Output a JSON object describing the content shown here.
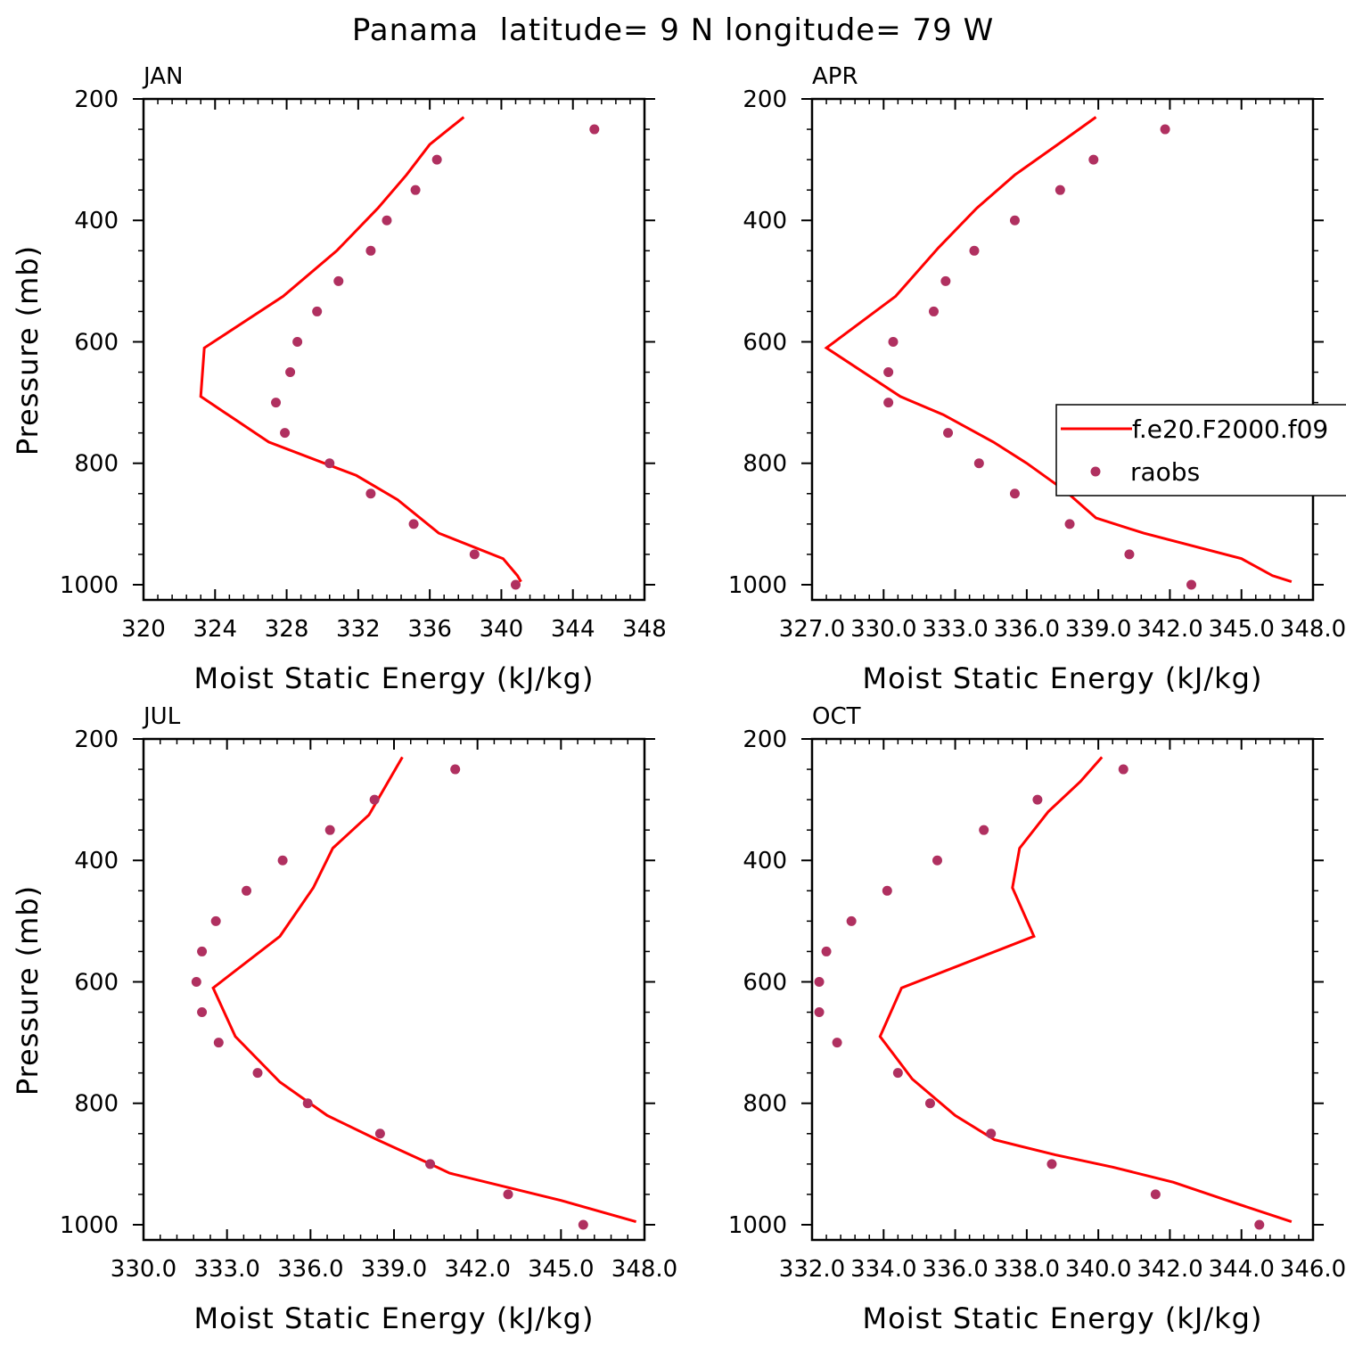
{
  "figure": {
    "title": "Panama  latitude= 9 N longitude= 79 W",
    "colors": {
      "model": "#ff0000",
      "obs": "#b03060",
      "axes": "#000000",
      "background": "#ffffff"
    }
  },
  "legend": {
    "panel": "APR",
    "entries": [
      {
        "label": "f.e20.F2000.f09",
        "style": "line"
      },
      {
        "label": "raobs",
        "style": "marker"
      }
    ]
  },
  "chart_data": [
    {
      "panel": "JAN",
      "type": "line",
      "title": "JAN",
      "xlabel": "Moist Static Energy (kJ/kg)",
      "ylabel": "Pressure (mb)",
      "xlim": [
        320,
        348
      ],
      "xticks": [
        320,
        324,
        328,
        332,
        336,
        340,
        344,
        348
      ],
      "xtick_labels": [
        "320",
        "324",
        "328",
        "332",
        "336",
        "340",
        "344",
        "348"
      ],
      "ylim": [
        200,
        1025
      ],
      "yticks": [
        200,
        400,
        600,
        800,
        1000
      ],
      "ytick_labels": [
        "200",
        "400",
        "600",
        "800",
        "1000"
      ],
      "y_inverted": true,
      "series": [
        {
          "name": "f.e20.F2000.f09",
          "type": "line",
          "x": [
            337.9,
            336.0,
            334.7,
            333.1,
            330.8,
            327.8,
            323.4,
            323.2,
            327.0,
            331.9,
            334.2,
            336.5,
            340.1,
            340.9,
            341.1
          ],
          "y": [
            230,
            275,
            325,
            380,
            450,
            525,
            610,
            690,
            765,
            820,
            860,
            915,
            957,
            985,
            995
          ]
        },
        {
          "name": "raobs",
          "type": "scatter",
          "x": [
            345.2,
            336.4,
            335.2,
            333.6,
            332.7,
            330.9,
            329.7,
            328.6,
            328.2,
            327.4,
            327.9,
            330.4,
            332.7,
            335.1,
            338.5,
            340.8
          ],
          "y": [
            250,
            300,
            350,
            400,
            450,
            500,
            550,
            600,
            650,
            700,
            750,
            800,
            850,
            900,
            950,
            1000
          ]
        }
      ]
    },
    {
      "panel": "APR",
      "type": "line",
      "title": "APR",
      "xlabel": "Moist Static Energy (kJ/kg)",
      "ylabel": "",
      "xlim": [
        327,
        348
      ],
      "xticks": [
        327,
        330,
        333,
        336,
        339,
        342,
        345,
        348
      ],
      "xtick_labels": [
        "327.0",
        "330.0",
        "333.0",
        "336.0",
        "339.0",
        "342.0",
        "345.0",
        "348.0"
      ],
      "ylim": [
        200,
        1025
      ],
      "yticks": [
        200,
        400,
        600,
        800,
        1000
      ],
      "ytick_labels": [
        "200",
        "400",
        "600",
        "800",
        "1000"
      ],
      "y_inverted": true,
      "series": [
        {
          "name": "f.e20.F2000.f09",
          "type": "line",
          "x": [
            338.9,
            337.3,
            335.5,
            333.9,
            332.3,
            330.5,
            327.6,
            330.7,
            332.5,
            334.6,
            336.0,
            337.6,
            338.9,
            340.9,
            345.0,
            346.3,
            347.1
          ],
          "y": [
            230,
            275,
            325,
            380,
            445,
            525,
            610,
            690,
            720,
            765,
            800,
            845,
            890,
            915,
            957,
            985,
            995
          ]
        },
        {
          "name": "raobs",
          "type": "scatter",
          "x": [
            341.8,
            338.8,
            337.4,
            335.5,
            333.8,
            332.6,
            332.1,
            330.4,
            330.2,
            330.2,
            332.7,
            334.0,
            335.5,
            337.8,
            340.3,
            342.9
          ],
          "y": [
            250,
            300,
            350,
            400,
            450,
            500,
            550,
            600,
            650,
            700,
            750,
            800,
            850,
            900,
            950,
            1000
          ]
        }
      ]
    },
    {
      "panel": "JUL",
      "type": "line",
      "title": "JUL",
      "xlabel": "Moist Static Energy (kJ/kg)",
      "ylabel": "Pressure (mb)",
      "xlim": [
        330,
        348
      ],
      "xticks": [
        330,
        333,
        336,
        339,
        342,
        345,
        348
      ],
      "xtick_labels": [
        "330.0",
        "333.0",
        "336.0",
        "339.0",
        "342.0",
        "345.0",
        "348.0"
      ],
      "ylim": [
        200,
        1025
      ],
      "yticks": [
        200,
        400,
        600,
        800,
        1000
      ],
      "ytick_labels": [
        "200",
        "400",
        "600",
        "800",
        "1000"
      ],
      "y_inverted": true,
      "series": [
        {
          "name": "f.e20.F2000.f09",
          "type": "line",
          "x": [
            339.3,
            338.1,
            336.8,
            336.1,
            334.9,
            332.5,
            333.3,
            334.9,
            336.6,
            338.4,
            340.3,
            341.0,
            345.0,
            347.7
          ],
          "y": [
            230,
            325,
            380,
            445,
            525,
            610,
            690,
            765,
            820,
            860,
            900,
            915,
            960,
            995
          ]
        },
        {
          "name": "raobs",
          "type": "scatter",
          "x": [
            341.2,
            338.3,
            336.7,
            335.0,
            333.7,
            332.6,
            332.1,
            331.9,
            332.1,
            332.7,
            334.1,
            335.9,
            338.5,
            340.3,
            343.1,
            345.8
          ],
          "y": [
            250,
            300,
            350,
            400,
            450,
            500,
            550,
            600,
            650,
            700,
            750,
            800,
            850,
            900,
            950,
            1000
          ]
        }
      ]
    },
    {
      "panel": "OCT",
      "type": "line",
      "title": "OCT",
      "xlabel": "Moist Static Energy (kJ/kg)",
      "ylabel": "",
      "xlim": [
        332,
        346
      ],
      "xticks": [
        332,
        334,
        336,
        338,
        340,
        342,
        344,
        346
      ],
      "xtick_labels": [
        "332.0",
        "334.0",
        "336.0",
        "338.0",
        "340.0",
        "342.0",
        "344.0",
        "346.0"
      ],
      "ylim": [
        200,
        1025
      ],
      "yticks": [
        200,
        400,
        600,
        800,
        1000
      ],
      "ytick_labels": [
        "200",
        "400",
        "600",
        "800",
        "1000"
      ],
      "y_inverted": true,
      "series": [
        {
          "name": "f.e20.F2000.f09",
          "type": "line",
          "x": [
            340.1,
            339.5,
            338.6,
            337.8,
            337.6,
            338.2,
            334.5,
            333.9,
            334.8,
            336.0,
            337.1,
            338.8,
            340.4,
            342.1,
            343.6,
            345.4
          ],
          "y": [
            230,
            270,
            320,
            380,
            445,
            525,
            610,
            690,
            760,
            820,
            860,
            885,
            905,
            930,
            960,
            995
          ]
        },
        {
          "name": "raobs",
          "type": "scatter",
          "x": [
            340.7,
            338.3,
            336.8,
            335.5,
            334.1,
            333.1,
            332.4,
            332.2,
            332.2,
            332.7,
            334.4,
            335.3,
            337.0,
            338.7,
            341.6,
            344.5
          ],
          "y": [
            250,
            300,
            350,
            400,
            450,
            500,
            550,
            600,
            650,
            700,
            750,
            800,
            850,
            900,
            950,
            1000
          ]
        }
      ]
    }
  ]
}
